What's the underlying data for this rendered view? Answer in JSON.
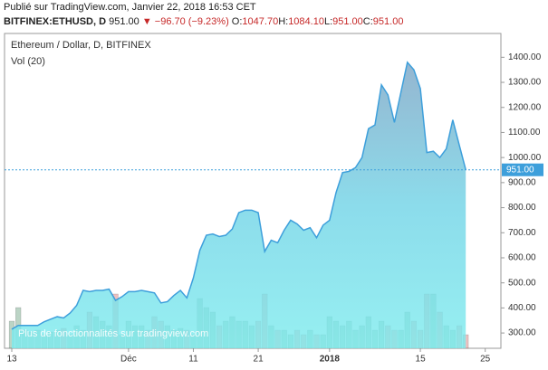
{
  "header": {
    "published": "Publié sur TradingView.com, Janvier 22, 2018 16:53 CET",
    "symbol": "BITFINEX:ETHUSD, D",
    "last": "951.00",
    "change": "▼ −96.70 (−9.23%)",
    "ohlc": [
      {
        "key": "O:",
        "value": "1047.70"
      },
      {
        "key": "H:",
        "value": "1084.10"
      },
      {
        "key": "L:",
        "value": "951.00"
      },
      {
        "key": "C:",
        "value": "951.00"
      }
    ]
  },
  "watermark": "Plus de fonctionnalités sur tradingview.com",
  "chart_data": {
    "type": "area",
    "title": "Ethereum / Dollar, D, BITFINEX",
    "volume_title": "Vol (20)",
    "categories": [
      "13",
      null,
      null,
      null,
      null,
      null,
      null,
      null,
      null,
      null,
      null,
      null,
      null,
      null,
      null,
      null,
      null,
      null,
      "Déc",
      null,
      null,
      null,
      null,
      null,
      null,
      null,
      null,
      null,
      "11",
      null,
      null,
      null,
      null,
      null,
      null,
      null,
      null,
      null,
      "21",
      null,
      null,
      null,
      null,
      null,
      null,
      null,
      null,
      null,
      null,
      "2018",
      null,
      null,
      null,
      null,
      null,
      null,
      null,
      null,
      null,
      null,
      null,
      null,
      null,
      "15",
      null,
      null,
      null,
      null,
      null,
      null,
      null,
      null,
      null,
      "25"
    ],
    "series": [
      {
        "name": "ETHUSD",
        "color": "#3d9fdb",
        "values": [
          315,
          330,
          330,
          330,
          330,
          345,
          355,
          365,
          360,
          380,
          410,
          470,
          465,
          470,
          470,
          475,
          430,
          445,
          465,
          465,
          470,
          465,
          460,
          420,
          425,
          450,
          470,
          440,
          520,
          630,
          690,
          695,
          685,
          690,
          715,
          780,
          790,
          790,
          780,
          625,
          670,
          660,
          710,
          750,
          735,
          710,
          720,
          680,
          730,
          750,
          860,
          940,
          945,
          960,
          1000,
          1115,
          1130,
          1290,
          1250,
          1140,
          1260,
          1380,
          1350,
          1275,
          1020,
          1025,
          1000,
          1035,
          1150,
          1050,
          951,
          null,
          null,
          null
        ]
      },
      {
        "name": "Volume",
        "axis": "vol",
        "values": [
          30,
          45,
          20,
          18,
          20,
          15,
          18,
          20,
          22,
          15,
          25,
          20,
          40,
          35,
          30,
          25,
          60,
          15,
          30,
          25,
          25,
          20,
          35,
          30,
          25,
          20,
          22,
          20,
          15,
          55,
          45,
          40,
          25,
          30,
          35,
          30,
          30,
          25,
          30,
          60,
          25,
          20,
          20,
          15,
          20,
          15,
          20,
          15,
          15,
          35,
          30,
          25,
          30,
          20,
          25,
          35,
          20,
          30,
          25,
          20,
          20,
          40,
          30,
          20,
          60,
          60,
          40,
          25,
          20,
          25,
          15,
          null,
          null,
          null
        ]
      }
    ],
    "ylim": [
      239,
      1495
    ],
    "vollim": [
      0,
      100
    ],
    "yticks": [
      {
        "value": 300,
        "label": "300.00"
      },
      {
        "value": 400,
        "label": "400.00"
      },
      {
        "value": 500,
        "label": "500.00"
      },
      {
        "value": 600,
        "label": "600.00"
      },
      {
        "value": 700,
        "label": "700.00"
      },
      {
        "value": 800,
        "label": "800.00"
      },
      {
        "value": 900,
        "label": "900.00"
      },
      {
        "value": 1000,
        "label": "1000.00"
      },
      {
        "value": 1100,
        "label": "1100.00"
      },
      {
        "value": 1200,
        "label": "1200.00"
      },
      {
        "value": 1300,
        "label": "1300.00"
      },
      {
        "value": 1400,
        "label": "1400.00"
      }
    ],
    "last_price": {
      "value": 951,
      "label": "951.00"
    },
    "up_color": "rgba(120,170,140,0.5)",
    "down_color": "rgba(220,130,130,0.5)"
  }
}
